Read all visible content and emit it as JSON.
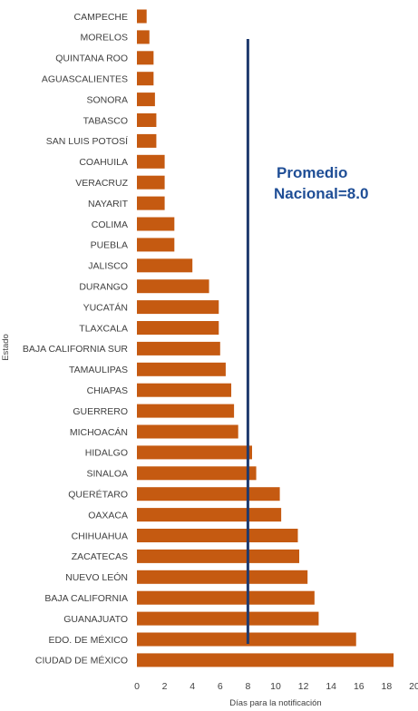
{
  "chart_data": {
    "type": "bar",
    "orientation": "horizontal",
    "categories": [
      "CAMPECHE",
      "MORELOS",
      "QUINTANA ROO",
      "AGUASCALIENTES",
      "SONORA",
      "TABASCO",
      "SAN LUIS POTOSÍ",
      "COAHUILA",
      "VERACRUZ",
      "NAYARIT",
      "COLIMA",
      "PUEBLA",
      "JALISCO",
      "DURANGO",
      "YUCATÁN",
      "TLAXCALA",
      "BAJA CALIFORNIA SUR",
      "TAMAULIPAS",
      "CHIAPAS",
      "GUERRERO",
      "MICHOACÁN",
      "HIDALGO",
      "SINALOA",
      "QUERÉTARO",
      "OAXACA",
      "CHIHUAHUA",
      "ZACATECAS",
      "NUEVO LEÓN",
      "BAJA CALIFORNIA",
      "GUANAJUATO",
      "EDO. DE MÉXICO",
      "CIUDAD DE MÉXICO"
    ],
    "values": [
      0.7,
      0.9,
      1.2,
      1.2,
      1.3,
      1.4,
      1.4,
      2.0,
      2.0,
      2.0,
      2.7,
      2.7,
      4.0,
      5.2,
      5.9,
      5.9,
      6.0,
      6.4,
      6.8,
      7.0,
      7.3,
      8.3,
      8.6,
      10.3,
      10.4,
      11.6,
      11.7,
      12.3,
      12.8,
      13.1,
      15.8,
      18.5
    ],
    "xlabel": "Días para la notificación",
    "ylabel": "Estado",
    "xlim": [
      0,
      20
    ],
    "xticks": [
      "0",
      "2",
      "4",
      "6",
      "8",
      "10",
      "12",
      "14",
      "16",
      "18",
      "20"
    ],
    "bar_color": "#c55a11",
    "reference_line": {
      "value": 8.0,
      "color": "#1f3a6e"
    },
    "annotation": {
      "line1": "Promedio",
      "line2": "Nacional=8.0",
      "color": "#1f4e96"
    },
    "grid": false,
    "legend": "none"
  }
}
